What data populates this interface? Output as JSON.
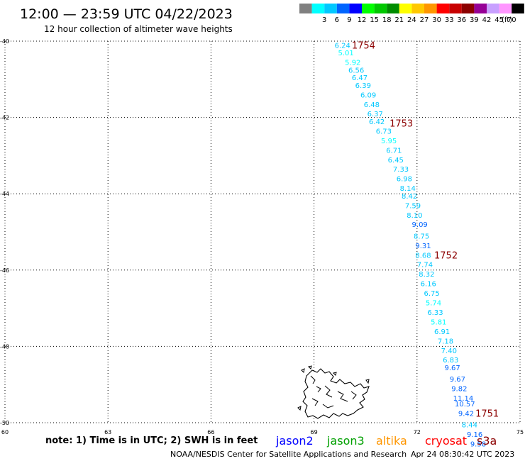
{
  "header": {
    "title": "12:00 — 23:59 UTC 04/22/2023",
    "subtitle": "12 hour collection of altimeter wave heights"
  },
  "legend": {
    "unit": "(ft)",
    "bins": [
      {
        "label": "",
        "color": "#808080"
      },
      {
        "label": "3",
        "color": "#00ffff"
      },
      {
        "label": "6",
        "color": "#00c8ff"
      },
      {
        "label": "9",
        "color": "#0064ff"
      },
      {
        "label": "12",
        "color": "#0000ff"
      },
      {
        "label": "15",
        "color": "#00ff00"
      },
      {
        "label": "18",
        "color": "#00c800"
      },
      {
        "label": "21",
        "color": "#008c00"
      },
      {
        "label": "24",
        "color": "#ffff00"
      },
      {
        "label": "27",
        "color": "#ffc800"
      },
      {
        "label": "30",
        "color": "#ff9600"
      },
      {
        "label": "33",
        "color": "#ff0000"
      },
      {
        "label": "36",
        "color": "#c80000"
      },
      {
        "label": "39",
        "color": "#8c0000"
      },
      {
        "label": "42",
        "color": "#960096"
      },
      {
        "label": "45",
        "color": "#c8a0ff"
      },
      {
        "label": "70",
        "color": "#ff96ff"
      },
      {
        "label": "",
        "color": "#000000"
      }
    ]
  },
  "map": {
    "lon_range": [
      60,
      75
    ],
    "lat_range": [
      -50,
      -40
    ],
    "lon_ticks": [
      "60",
      "63",
      "66",
      "69",
      "72",
      "75"
    ],
    "lat_ticks": [
      "-40",
      "-42",
      "-44",
      "-46",
      "-48",
      "-50"
    ],
    "track_labels": [
      {
        "text": "1754",
        "lon": 70.1,
        "lat": -40.1
      },
      {
        "text": "1753",
        "lon": 71.2,
        "lat": -42.15
      },
      {
        "text": "1752",
        "lon": 72.5,
        "lat": -45.6
      },
      {
        "text": "1751",
        "lon": 73.7,
        "lat": -49.75
      }
    ],
    "observations": [
      {
        "value": "6.24",
        "lon": 69.6,
        "lat": -40.1,
        "color": "#00c8ff"
      },
      {
        "value": "5.01",
        "lon": 69.7,
        "lat": -40.3,
        "color": "#00ffff"
      },
      {
        "value": "5.92",
        "lon": 69.9,
        "lat": -40.55,
        "color": "#00ffff"
      },
      {
        "value": "6.56",
        "lon": 70.0,
        "lat": -40.75,
        "color": "#00c8ff"
      },
      {
        "value": "6.47",
        "lon": 70.1,
        "lat": -40.95,
        "color": "#00c8ff"
      },
      {
        "value": "6.39",
        "lon": 70.2,
        "lat": -41.15,
        "color": "#00c8ff"
      },
      {
        "value": "6.09",
        "lon": 70.35,
        "lat": -41.4,
        "color": "#00c8ff"
      },
      {
        "value": "6.48",
        "lon": 70.45,
        "lat": -41.65,
        "color": "#00c8ff"
      },
      {
        "value": "6.37",
        "lon": 70.55,
        "lat": -41.9,
        "color": "#00c8ff"
      },
      {
        "value": "6.42",
        "lon": 70.6,
        "lat": -42.1,
        "color": "#00c8ff"
      },
      {
        "value": "6.73",
        "lon": 70.8,
        "lat": -42.35,
        "color": "#00c8ff"
      },
      {
        "value": "5.95",
        "lon": 70.95,
        "lat": -42.6,
        "color": "#00ffff"
      },
      {
        "value": "6.71",
        "lon": 71.1,
        "lat": -42.85,
        "color": "#00c8ff"
      },
      {
        "value": "6.45",
        "lon": 71.15,
        "lat": -43.1,
        "color": "#00c8ff"
      },
      {
        "value": "7.33",
        "lon": 71.3,
        "lat": -43.35,
        "color": "#00c8ff"
      },
      {
        "value": "6.98",
        "lon": 71.4,
        "lat": -43.6,
        "color": "#00c8ff"
      },
      {
        "value": "8.14",
        "lon": 71.5,
        "lat": -43.85,
        "color": "#00c8ff"
      },
      {
        "value": "8.42",
        "lon": 71.55,
        "lat": -44.05,
        "color": "#00c8ff"
      },
      {
        "value": "7.59",
        "lon": 71.65,
        "lat": -44.3,
        "color": "#00c8ff"
      },
      {
        "value": "8.10",
        "lon": 71.7,
        "lat": -44.55,
        "color": "#00c8ff"
      },
      {
        "value": "9.09",
        "lon": 71.85,
        "lat": -44.8,
        "color": "#0064ff"
      },
      {
        "value": "8.75",
        "lon": 71.9,
        "lat": -45.1,
        "color": "#00c8ff"
      },
      {
        "value": "9.31",
        "lon": 71.95,
        "lat": -45.35,
        "color": "#0064ff"
      },
      {
        "value": "8.68",
        "lon": 71.95,
        "lat": -45.6,
        "color": "#00c8ff"
      },
      {
        "value": "7.74",
        "lon": 72.0,
        "lat": -45.85,
        "color": "#00c8ff"
      },
      {
        "value": "8.32",
        "lon": 72.05,
        "lat": -46.1,
        "color": "#00c8ff"
      },
      {
        "value": "6.16",
        "lon": 72.1,
        "lat": -46.35,
        "color": "#00c8ff"
      },
      {
        "value": "6.75",
        "lon": 72.2,
        "lat": -46.6,
        "color": "#00c8ff"
      },
      {
        "value": "5.74",
        "lon": 72.25,
        "lat": -46.85,
        "color": "#00ffff"
      },
      {
        "value": "6.33",
        "lon": 72.3,
        "lat": -47.1,
        "color": "#00c8ff"
      },
      {
        "value": "5.81",
        "lon": 72.4,
        "lat": -47.35,
        "color": "#00ffff"
      },
      {
        "value": "6.91",
        "lon": 72.5,
        "lat": -47.6,
        "color": "#00c8ff"
      },
      {
        "value": "7.18",
        "lon": 72.6,
        "lat": -47.85,
        "color": "#00c8ff"
      },
      {
        "value": "7.40",
        "lon": 72.7,
        "lat": -48.1,
        "color": "#00c8ff"
      },
      {
        "value": "6.83",
        "lon": 72.75,
        "lat": -48.35,
        "color": "#00c8ff"
      },
      {
        "value": "9.67",
        "lon": 72.8,
        "lat": -48.55,
        "color": "#0064ff"
      },
      {
        "value": "9.67",
        "lon": 72.95,
        "lat": -48.85,
        "color": "#0064ff"
      },
      {
        "value": "9.82",
        "lon": 73.0,
        "lat": -49.1,
        "color": "#0064ff"
      },
      {
        "value": "11.14",
        "lon": 73.05,
        "lat": -49.35,
        "color": "#0064ff"
      },
      {
        "value": "10.57",
        "lon": 73.1,
        "lat": -49.5,
        "color": "#0064ff"
      },
      {
        "value": "9.42",
        "lon": 73.2,
        "lat": -49.75,
        "color": "#0064ff"
      },
      {
        "value": "8.44",
        "lon": 73.3,
        "lat": -50.05,
        "color": "#00c8ff"
      },
      {
        "value": "9.16",
        "lon": 73.45,
        "lat": -50.3,
        "color": "#0064ff"
      },
      {
        "value": "9.58",
        "lon": 73.55,
        "lat": -50.55,
        "color": "#0064ff"
      }
    ]
  },
  "footer": {
    "note": "note:  1) Time is in UTC; 2) SWH is in feet",
    "satellites": [
      {
        "name": "jason2",
        "color": "#0000ff"
      },
      {
        "name": "jason3",
        "color": "#00a000"
      },
      {
        "name": "altika",
        "color": "#ff9600"
      },
      {
        "name": "cryosat",
        "color": "#ff0000"
      },
      {
        "name": "s3a",
        "color": "#8c0000"
      }
    ],
    "credit": "NOAA/NESDIS Center for Satellite Applications and Research",
    "timestamp": "Apr 24 08:30:42 UTC 2023"
  }
}
